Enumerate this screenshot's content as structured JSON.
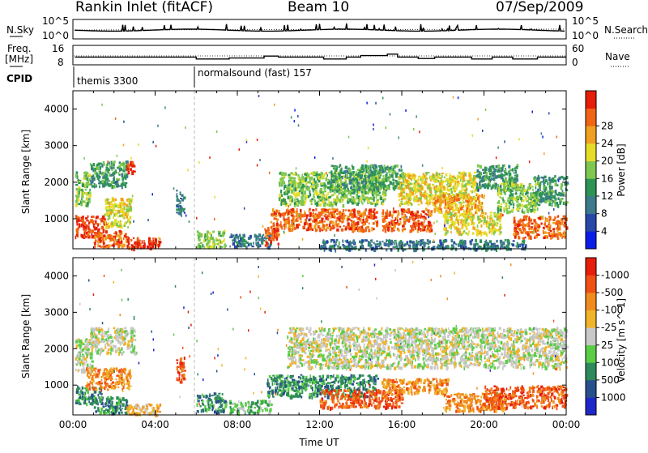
{
  "header": {
    "station": "Rankin Inlet (fitACF)",
    "beam": "Beam 10",
    "date": "07/Sep/2009"
  },
  "noise_panel": {
    "left_label": "N.Sky",
    "left_tick_top": "10^5",
    "left_tick_bottom": "10^0",
    "right_label": "N.Search",
    "right_tick_top": "10^5",
    "right_tick_bottom": "10^0"
  },
  "freq_panel": {
    "left_label_1": "Freq.",
    "left_label_2": "[MHz]",
    "left_tick_top": "16",
    "left_tick_bottom": "8",
    "right_label": "Nave",
    "right_tick_top": "60",
    "right_tick_bottom": "0",
    "freq_steps": [
      {
        "t": 0.1,
        "v": 11.2
      },
      {
        "t": 6.0,
        "v": 11.2
      },
      {
        "t": 6.0,
        "v": 10.4
      },
      {
        "t": 7.6,
        "v": 10.4
      },
      {
        "t": 7.6,
        "v": 10.8
      },
      {
        "t": 9.3,
        "v": 10.8
      },
      {
        "t": 9.3,
        "v": 11.6
      },
      {
        "t": 10.0,
        "v": 11.6
      },
      {
        "t": 10.0,
        "v": 11.2
      },
      {
        "t": 12.2,
        "v": 11.2
      },
      {
        "t": 12.2,
        "v": 10.4
      },
      {
        "t": 13.3,
        "v": 10.4
      },
      {
        "t": 13.3,
        "v": 11.2
      },
      {
        "t": 14.0,
        "v": 11.2
      },
      {
        "t": 14.0,
        "v": 11.8
      },
      {
        "t": 15.3,
        "v": 11.8
      },
      {
        "t": 15.3,
        "v": 12.4
      },
      {
        "t": 15.8,
        "v": 12.4
      },
      {
        "t": 15.8,
        "v": 11.2
      },
      {
        "t": 16.8,
        "v": 11.2
      },
      {
        "t": 16.8,
        "v": 10.6
      },
      {
        "t": 17.6,
        "v": 10.6
      },
      {
        "t": 17.6,
        "v": 11.2
      },
      {
        "t": 19.4,
        "v": 11.2
      },
      {
        "t": 19.4,
        "v": 10.4
      },
      {
        "t": 20.4,
        "v": 10.4
      },
      {
        "t": 20.4,
        "v": 11.2
      },
      {
        "t": 21.4,
        "v": 11.2
      },
      {
        "t": 21.4,
        "v": 10.4
      },
      {
        "t": 22.6,
        "v": 10.4
      },
      {
        "t": 22.6,
        "v": 11.2
      },
      {
        "t": 24.0,
        "v": 11.2
      }
    ]
  },
  "cpid_panel": {
    "label": "CPID",
    "modes": [
      {
        "start": 0.0,
        "name": "themis 3300"
      },
      {
        "start": 6.0,
        "name": "normalsound (fast) 157"
      }
    ]
  },
  "chart_data": [
    {
      "type": "heatmap",
      "parameter": "Power",
      "xlabel": "",
      "ylabel": "Slant Range [km]",
      "xlim": [
        0,
        24
      ],
      "ylim": [
        180,
        4500
      ],
      "yticks": [
        1000,
        2000,
        3000,
        4000
      ],
      "colorbar": {
        "label": "Power [dB]",
        "ticks": [
          "4",
          "8",
          "12",
          "16",
          "20",
          "24",
          "28"
        ],
        "colors": [
          "#0a1ee6",
          "#2848a8",
          "#3c7a8c",
          "#2e9456",
          "#7ec850",
          "#e6dc28",
          "#f0a020",
          "#f06414",
          "#e61e0a"
        ]
      },
      "regions": [
        {
          "t0": 0.1,
          "t1": 1.6,
          "r0": 500,
          "r1": 1100,
          "level": 8
        },
        {
          "t0": 1.0,
          "t1": 2.6,
          "r0": 250,
          "r1": 700,
          "level": 7
        },
        {
          "t0": 0.1,
          "t1": 0.8,
          "r0": 1400,
          "r1": 2300,
          "level": 4
        },
        {
          "t0": 0.8,
          "t1": 2.6,
          "r0": 1900,
          "r1": 2600,
          "level": 3
        },
        {
          "t0": 1.5,
          "t1": 2.8,
          "r0": 800,
          "r1": 1600,
          "level": 5
        },
        {
          "t0": 2.6,
          "t1": 3.0,
          "r0": 2300,
          "r1": 2600,
          "level": 8
        },
        {
          "t0": 2.6,
          "t1": 4.2,
          "r0": 200,
          "r1": 500,
          "level": 8
        },
        {
          "t0": 5.0,
          "t1": 5.4,
          "r0": 1100,
          "r1": 1800,
          "level": 2
        },
        {
          "t0": 6.0,
          "t1": 7.4,
          "r0": 250,
          "r1": 700,
          "level": 4
        },
        {
          "t0": 7.6,
          "t1": 9.6,
          "r0": 250,
          "r1": 600,
          "level": 2
        },
        {
          "t0": 9.3,
          "t1": 10.0,
          "r0": 300,
          "r1": 800,
          "level": 7
        },
        {
          "t0": 9.6,
          "t1": 14.8,
          "r0": 700,
          "r1": 1300,
          "level": 7
        },
        {
          "t0": 10.0,
          "t1": 15.2,
          "r0": 1400,
          "r1": 2300,
          "level": 4
        },
        {
          "t0": 12.5,
          "t1": 16.0,
          "r0": 1800,
          "r1": 2500,
          "level": 3
        },
        {
          "t0": 15.0,
          "t1": 17.4,
          "r0": 700,
          "r1": 1300,
          "level": 7
        },
        {
          "t0": 15.8,
          "t1": 19.6,
          "r0": 1400,
          "r1": 2300,
          "level": 5
        },
        {
          "t0": 17.5,
          "t1": 20.0,
          "r0": 1200,
          "r1": 1700,
          "level": 6
        },
        {
          "t0": 19.6,
          "t1": 21.6,
          "r0": 1800,
          "r1": 2500,
          "level": 3
        },
        {
          "t0": 18.0,
          "t1": 20.8,
          "r0": 600,
          "r1": 1200,
          "level": 5
        },
        {
          "t0": 20.6,
          "t1": 22.6,
          "r0": 1200,
          "r1": 2000,
          "level": 4
        },
        {
          "t0": 21.4,
          "t1": 24.0,
          "r0": 500,
          "r1": 1100,
          "level": 7
        },
        {
          "t0": 22.4,
          "t1": 24.0,
          "r0": 1400,
          "r1": 2200,
          "level": 3
        },
        {
          "t0": 12.0,
          "t1": 22.0,
          "r0": 180,
          "r1": 450,
          "level": 2
        }
      ]
    },
    {
      "type": "heatmap",
      "parameter": "Velocity",
      "xlabel": "Time UT",
      "ylabel": "Slant Range [km]",
      "xlim": [
        0,
        24
      ],
      "ylim": [
        180,
        4500
      ],
      "xticks": [
        "00:00",
        "04:00",
        "08:00",
        "12:00",
        "16:00",
        "20:00",
        "00:00"
      ],
      "yticks": [
        1000,
        2000,
        3000,
        4000
      ],
      "colorbar": {
        "label": "Velocity [m s^-1]",
        "ticks": [
          "1000",
          "500",
          "100",
          "25",
          "-25",
          "-100",
          "-500",
          "-1000"
        ],
        "colors": [
          "#1e28c8",
          "#28508c",
          "#2e8a5a",
          "#5acd46",
          "#c8c8c8",
          "#f0b428",
          "#f08c1e",
          "#f05014",
          "#e61e0a"
        ]
      },
      "regions": [
        {
          "t0": 0.1,
          "t1": 0.9,
          "r0": 1400,
          "r1": 2300,
          "level": 4
        },
        {
          "t0": 0.8,
          "t1": 3.0,
          "r0": 1900,
          "r1": 2600,
          "level": 4
        },
        {
          "t0": 0.1,
          "t1": 1.4,
          "r0": 500,
          "r1": 1000,
          "level": 2
        },
        {
          "t0": 0.6,
          "t1": 2.8,
          "r0": 900,
          "r1": 1500,
          "level": 6
        },
        {
          "t0": 1.0,
          "t1": 2.6,
          "r0": 250,
          "r1": 700,
          "level": 2
        },
        {
          "t0": 2.6,
          "t1": 4.2,
          "r0": 200,
          "r1": 500,
          "level": 5
        },
        {
          "t0": 5.0,
          "t1": 5.4,
          "r0": 1100,
          "r1": 1800,
          "level": 7
        },
        {
          "t0": 6.0,
          "t1": 7.4,
          "r0": 300,
          "r1": 800,
          "level": 2
        },
        {
          "t0": 7.6,
          "t1": 9.6,
          "r0": 250,
          "r1": 600,
          "level": 3
        },
        {
          "t0": 9.4,
          "t1": 14.8,
          "r0": 700,
          "r1": 1300,
          "level": 2
        },
        {
          "t0": 10.4,
          "t1": 24.0,
          "r0": 1500,
          "r1": 2600,
          "level": 4
        },
        {
          "t0": 12.0,
          "t1": 16.0,
          "r0": 400,
          "r1": 900,
          "level": 7
        },
        {
          "t0": 15.0,
          "t1": 18.2,
          "r0": 800,
          "r1": 1200,
          "level": 6
        },
        {
          "t0": 18.0,
          "t1": 21.0,
          "r0": 300,
          "r1": 800,
          "level": 6
        },
        {
          "t0": 20.0,
          "t1": 24.0,
          "r0": 400,
          "r1": 1000,
          "level": 7
        }
      ]
    }
  ]
}
